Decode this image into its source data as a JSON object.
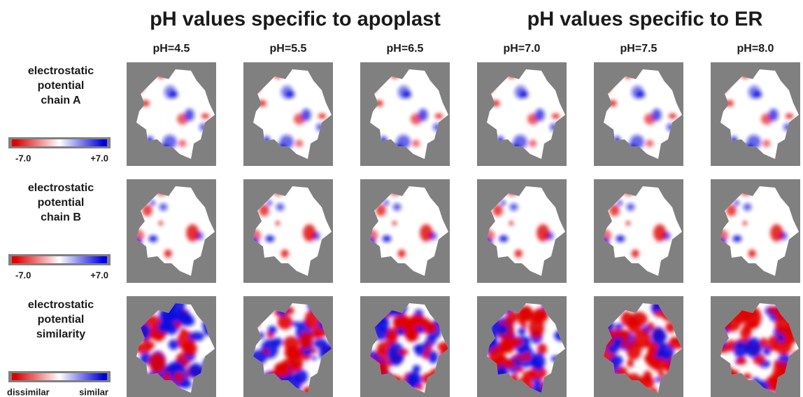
{
  "headers": [
    "pH values specific to apoplast",
    "pH values specific to ER"
  ],
  "columns": [
    "pH=4.5",
    "pH=5.5",
    "pH=6.5",
    "pH=7.0",
    "pH=7.5",
    "pH=8.0"
  ],
  "rows": [
    {
      "label": [
        "electrostatic",
        "potential",
        "chain A"
      ],
      "scale": {
        "min": "-7.0",
        "max": "+7.0"
      }
    },
    {
      "label": [
        "electrostatic",
        "potential",
        "chain B"
      ],
      "scale": {
        "min": "-7.0",
        "max": "+7.0"
      }
    },
    {
      "label": [
        "electrostatic",
        "potential",
        "similarity"
      ],
      "scale": {
        "min": "dissimilar",
        "max": "similar"
      }
    }
  ]
}
